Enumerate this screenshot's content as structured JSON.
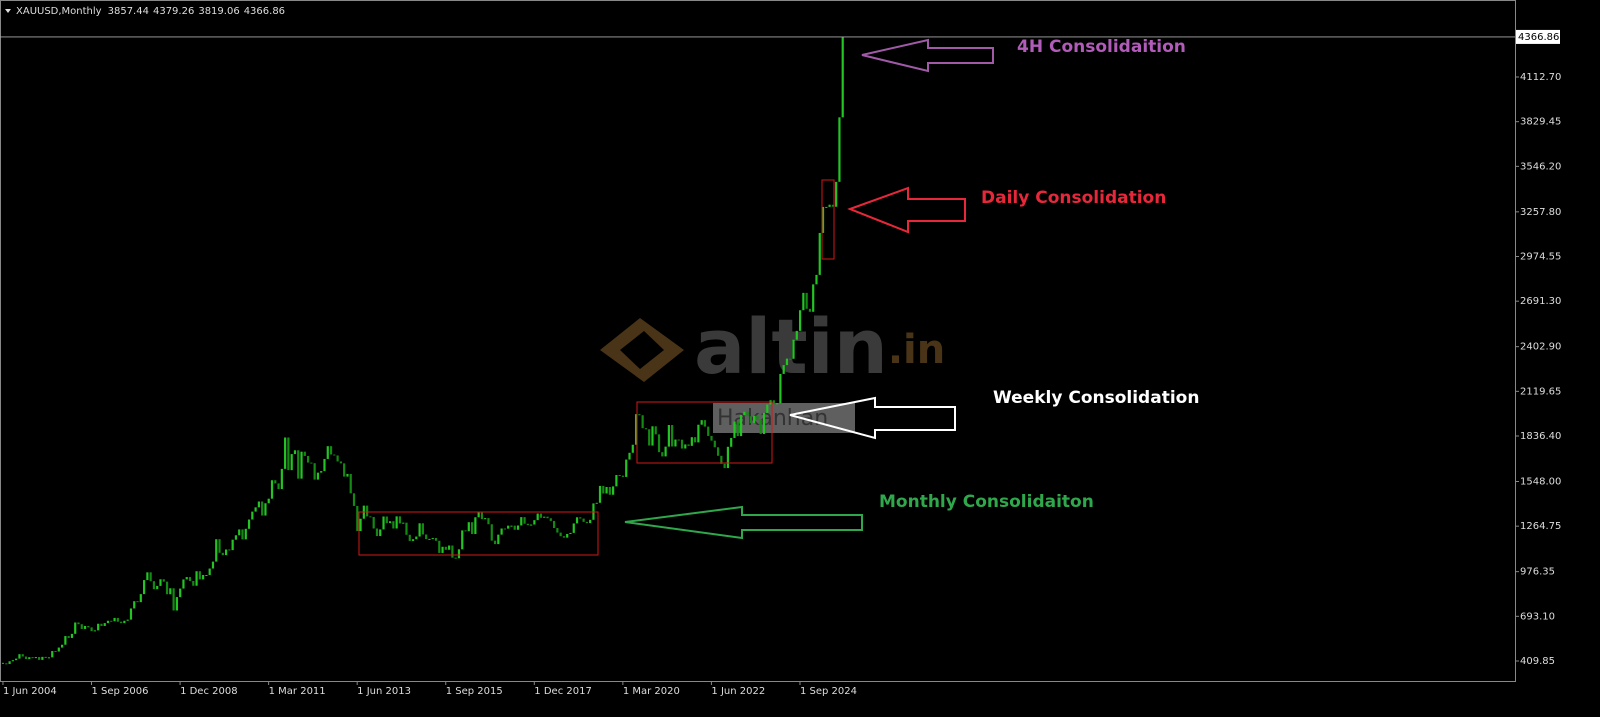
{
  "header": {
    "symbol": "XAUUSD,Monthly",
    "ohlc": [
      3857.44,
      4379.26,
      3819.06,
      4366.86
    ]
  },
  "watermark": {
    "brand": "altin",
    "suffix": ".in",
    "author": "Hakanhan"
  },
  "chart_data": {
    "type": "candlestick",
    "current_price": 4366.86,
    "color": "#22c522",
    "down_color": "#148a14",
    "ylim": [
      283,
      4601
    ],
    "yticks": [
      409.85,
      {
        "value": 693.1,
        "label": "693.10"
      },
      976.35,
      1264.75,
      {
        "value": 1548,
        "label": "1548.00"
      },
      {
        "value": 1836.4,
        "label": "1836.40"
      },
      2119.65,
      {
        "value": 2402.9,
        "label": "2402.90"
      },
      {
        "value": 2691.3,
        "label": "2691.30"
      },
      2974.55,
      {
        "value": 3257.8,
        "label": "3257.80"
      },
      {
        "value": 3546.2,
        "label": "3546.20"
      },
      3829.45,
      {
        "value": 4112.7,
        "label": "4112.70"
      }
    ],
    "xlim": [
      -0.9,
      461
    ],
    "xticks": [
      {
        "value": 0,
        "label": "1 Jun 2004"
      },
      {
        "value": 27,
        "label": "1 Sep 2006"
      },
      {
        "value": 54,
        "label": "1 Dec 2008"
      },
      {
        "value": 81,
        "label": "1 Mar 2011"
      },
      {
        "value": 108,
        "label": "1 Jun 2013"
      },
      {
        "value": 135,
        "label": "1 Sep 2015"
      },
      {
        "value": 162,
        "label": "1 Dec 2017"
      },
      {
        "value": 189,
        "label": "1 Mar 2020"
      },
      {
        "value": 216,
        "label": "1 Jun 2022"
      },
      {
        "value": 243,
        "label": "1 Sep 2024"
      }
    ],
    "values": [
      395,
      391,
      408,
      415,
      425,
      453,
      438,
      422,
      434,
      428,
      435,
      417,
      436,
      429,
      433,
      473,
      470,
      495,
      513,
      568,
      556,
      582,
      654,
      643,
      613,
      632,
      623,
      599,
      604,
      646,
      632,
      650,
      665,
      662,
      683,
      659,
      650,
      665,
      672,
      743,
      789,
      783,
      834,
      923,
      972,
      916,
      865,
      886,
      928,
      913,
      833,
      871,
      730,
      815,
      869,
      927,
      942,
      917,
      887,
      979,
      927,
      955,
      955,
      996,
      1040,
      1182,
      1096,
      1081,
      1117,
      1113,
      1179,
      1207,
      1244,
      1181,
      1248,
      1307,
      1357,
      1384,
      1421,
      1332,
      1410,
      1439,
      1556,
      1536,
      1500,
      1628,
      1827,
      1620,
      1722,
      1746,
      1566,
      1737,
      1710,
      1668,
      1664,
      1560,
      1604,
      1614,
      1691,
      1772,
      1719,
      1713,
      1675,
      1663,
      1579,
      1596,
      1473,
      1393,
      1234,
      1312,
      1395,
      1327,
      1323,
      1250,
      1202,
      1244,
      1326,
      1284,
      1296,
      1250,
      1327,
      1282,
      1287,
      1210,
      1171,
      1182,
      1199,
      1283,
      1212,
      1183,
      1184,
      1190,
      1172,
      1095,
      1134,
      1115,
      1142,
      1065,
      1061,
      1118,
      1238,
      1233,
      1290,
      1215,
      1321,
      1351,
      1309,
      1316,
      1277,
      1173,
      1151,
      1211,
      1250,
      1249,
      1268,
      1268,
      1242,
      1269,
      1322,
      1280,
      1271,
      1275,
      1303,
      1345,
      1318,
      1325,
      1315,
      1298,
      1253,
      1224,
      1201,
      1192,
      1215,
      1222,
      1282,
      1321,
      1313,
      1292,
      1284,
      1305,
      1409,
      1413,
      1520,
      1472,
      1513,
      1464,
      1517,
      1589,
      1585,
      1577,
      1687,
      1730,
      1781,
      1975,
      1968,
      1886,
      1879,
      1776,
      1898,
      1847,
      1734,
      1707,
      1769,
      1906,
      1770,
      1814,
      1813,
      1757,
      1783,
      1774,
      1829,
      1796,
      1908,
      1937,
      1896,
      1837,
      1807,
      1765,
      1711,
      1660,
      1633,
      1768,
      1824,
      1928,
      1836,
      1969,
      1990,
      1962,
      1919,
      1965,
      1940,
      1849,
      1983,
      2036,
      2063,
      2039,
      2044,
      2230,
      2286,
      2327,
      2326,
      2447,
      2503,
      2634,
      2744,
      2643,
      2624,
      2798,
      2858,
      3124,
      3289,
      3289,
      3303,
      3290,
      3448,
      3857,
      4366.86
    ],
    "annotations": [
      {
        "text": "4H Consolidaition",
        "color": "#b15cb9"
      },
      {
        "text": "Daily Consolidation",
        "color": "#e8283a"
      },
      {
        "text": "Weekly Consolidation",
        "color": "#ffffff"
      },
      {
        "text": "Monthly Consolidaiton",
        "color": "#2fa84b"
      }
    ]
  }
}
